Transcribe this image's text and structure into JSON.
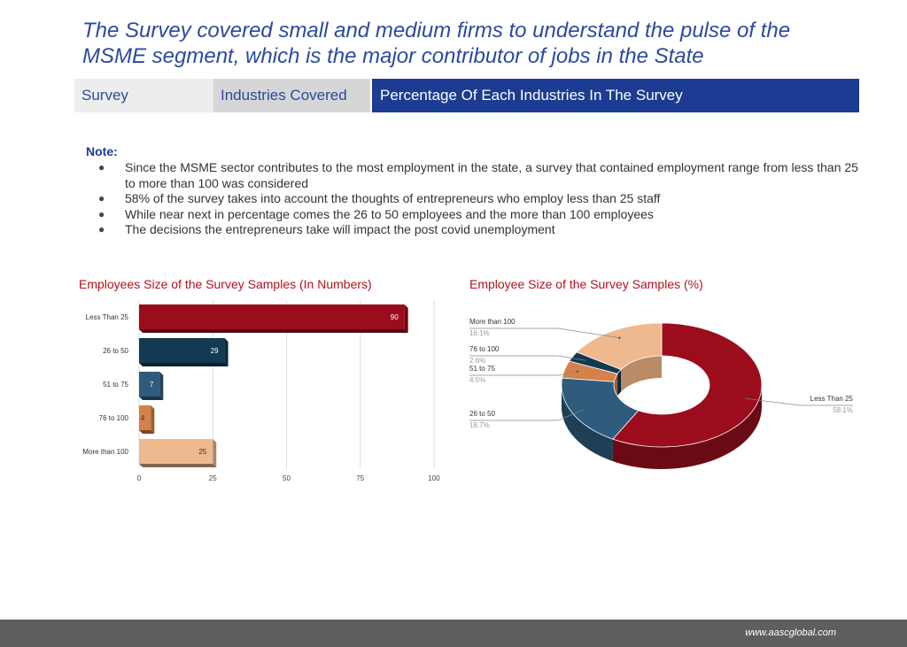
{
  "title": {
    "line1": "The Survey covered small and medium firms to understand the pulse of the",
    "line2": "MSME segment, which is the major contributor of jobs in the State"
  },
  "tabs": [
    {
      "label": "Survey",
      "active": false
    },
    {
      "label": "Industries Covered",
      "active": false
    },
    {
      "label": "Percentage Of Each Industries In The Survey",
      "active": true
    }
  ],
  "note": {
    "title": "Note:",
    "bullet": "●",
    "items": [
      "Since the MSME sector contributes to the most employment in the state, a survey that contained employment range from less than 25 to more than 100 was considered",
      "58% of the survey takes into account the thoughts of entrepreneurs who employ less than 25 staff",
      "While near next in percentage comes the 26 to 50 employees and the more than 100 employees",
      "The decisions the entrepreneurs take will impact the post covid unemployment"
    ]
  },
  "chart_data": [
    {
      "type": "bar",
      "orientation": "horizontal",
      "title": "Employees Size of the Survey Samples (In Numbers)",
      "categories": [
        "Less Than 25",
        "26 to 50",
        "51 to 75",
        "76 to 100",
        "More than 100"
      ],
      "values": [
        90,
        29,
        7,
        4,
        25
      ],
      "colors": [
        "#9b0d1d",
        "#123a52",
        "#2f5b7c",
        "#d4814a",
        "#efb98f"
      ],
      "xlim": [
        0,
        100
      ],
      "xticks": [
        "0",
        "25",
        "50",
        "75",
        "100"
      ],
      "grid": true,
      "data_labels": true
    },
    {
      "type": "pie",
      "style": "donut-3d",
      "title": "Employee Size of the Survey Samples (%)",
      "labels": [
        "Less Than 25",
        "26 to 50",
        "51 to 75",
        "76 to 100",
        "More than 100"
      ],
      "values": [
        58.1,
        18.7,
        4.5,
        2.6,
        16.1
      ],
      "value_labels": [
        "58.1%",
        "18.7%",
        "4.5%",
        "2.6%",
        "16.1%"
      ],
      "colors": [
        "#9b0d1d",
        "#2f5b7c",
        "#d4814a",
        "#123a52",
        "#efb98f"
      ],
      "side_colors": [
        "#6b0a14",
        "#1f3f57",
        "#9c5d34",
        "#0b2534",
        "#b98b67"
      ]
    }
  ],
  "footer": {
    "url": "www.aascglobal.com"
  }
}
